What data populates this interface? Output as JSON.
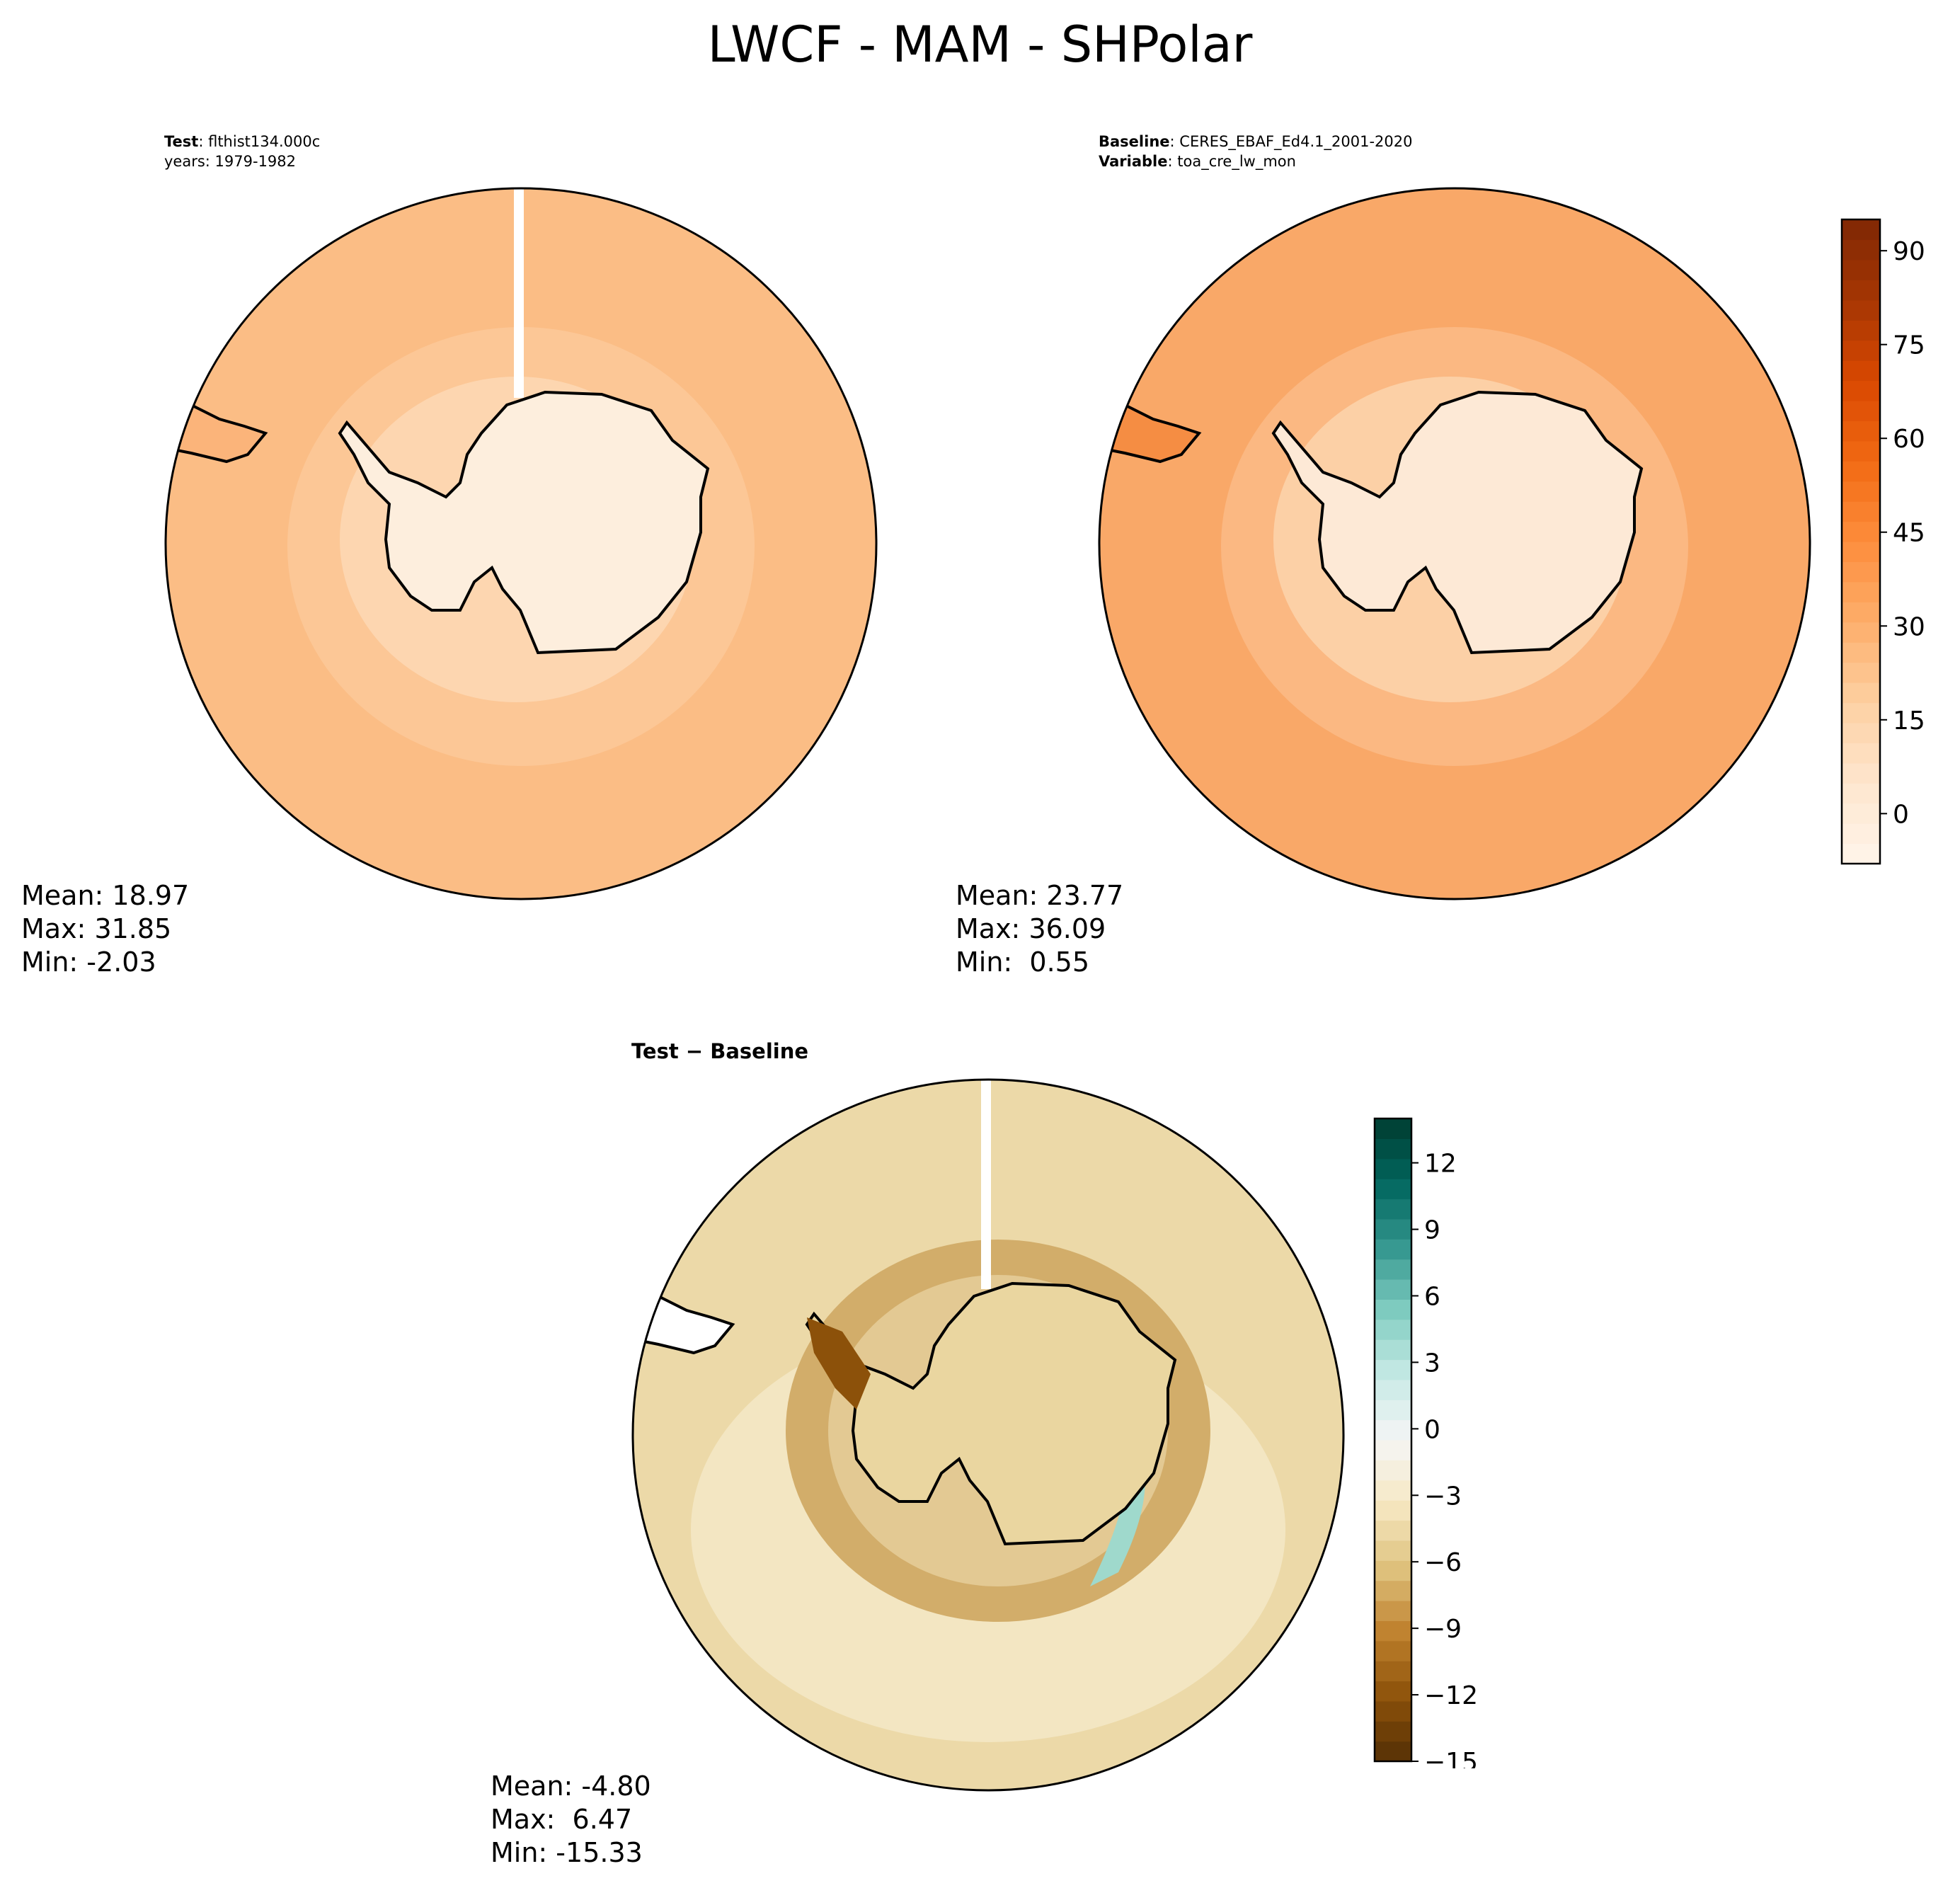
{
  "figure": {
    "title": "LWCF - MAM - SHPolar"
  },
  "panels": {
    "test": {
      "header_key1": "Test",
      "header_val1": "flthist134.000c",
      "header_line2": "years: 1979-1982",
      "mean": "Mean: 18.97",
      "max": "Max: 31.85",
      "min": "Min: -2.03"
    },
    "baseline": {
      "header_key1": "Baseline",
      "header_val1": "CERES_EBAF_Ed4.1_2001-2020",
      "header_key2": "Variable",
      "header_val2": "toa_cre_lw_mon",
      "mean": "Mean: 23.77",
      "max": "Max: 36.09",
      "min": "Min:  0.55"
    },
    "diff": {
      "title": "Test − Baseline",
      "mean": "Mean: -4.80",
      "max": "Max:  6.47",
      "min": "Min: -15.33"
    }
  },
  "colorbars": {
    "main": {
      "ticks": [
        "90",
        "75",
        "60",
        "45",
        "30",
        "15",
        "0"
      ],
      "tick_values": [
        90,
        75,
        60,
        45,
        30,
        15,
        0
      ],
      "range": [
        -8,
        95
      ],
      "colors": [
        "#fff5eb",
        "#fee6ce",
        "#fdd0a2",
        "#fdae6b",
        "#fd8d3c",
        "#f16913",
        "#d94801",
        "#a63603",
        "#7f2704"
      ]
    },
    "diff": {
      "ticks": [
        "12",
        "9",
        "6",
        "3",
        "0",
        "−3",
        "−6",
        "−9",
        "−12",
        "−15"
      ],
      "tick_values": [
        12,
        9,
        6,
        3,
        0,
        -3,
        -6,
        -9,
        -12,
        -15
      ],
      "range": [
        -15,
        14
      ],
      "colors": [
        "#543005",
        "#8c510a",
        "#bf812d",
        "#dfc27d",
        "#f6e8c3",
        "#f5f5f5",
        "#c7eae5",
        "#80cdc1",
        "#35978f",
        "#01665e",
        "#003c30"
      ]
    }
  },
  "map_colors": {
    "test_ocean": "#fbbd85",
    "test_ice": "#fdeedd",
    "base_ocean": "#f9a868",
    "base_ice": "#fde9d6",
    "diff_bg": "#ecd9a8"
  }
}
